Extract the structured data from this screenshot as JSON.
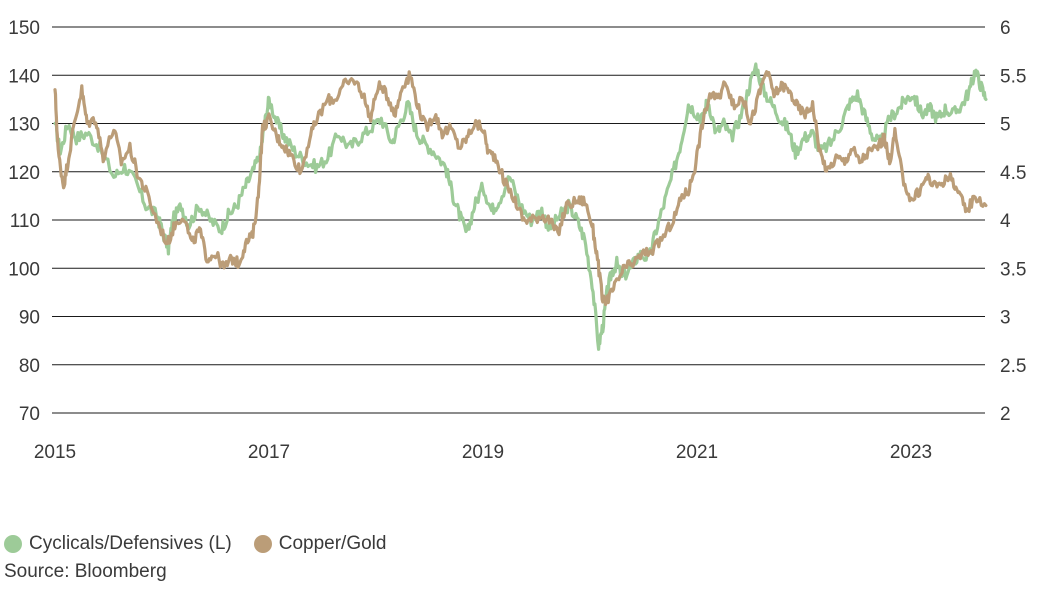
{
  "chart_data": {
    "type": "line",
    "title": "",
    "grid": "horizontal",
    "x_ticks": [
      "2015",
      "2017",
      "2019",
      "2021",
      "2023"
    ],
    "xlim": [
      2015.0,
      2023.7
    ],
    "y_left": {
      "lim": [
        70,
        150
      ],
      "ticks": [
        "70",
        "80",
        "90",
        "100",
        "110",
        "120",
        "130",
        "140",
        "150"
      ]
    },
    "y_right": {
      "lim": [
        2,
        6
      ],
      "ticks": [
        "2",
        "2.5",
        "3",
        "3.5",
        "4",
        "4.5",
        "5",
        "5.5",
        "6"
      ]
    },
    "series": [
      {
        "name": "Cyclicals/Defensives (L)",
        "axis": "left",
        "color": "#9dcb98",
        "x": [
          2015.0,
          2015.05,
          2015.12,
          2015.2,
          2015.3,
          2015.42,
          2015.55,
          2015.65,
          2015.75,
          2015.85,
          2015.95,
          2016.0,
          2016.06,
          2016.1,
          2016.18,
          2016.25,
          2016.35,
          2016.45,
          2016.55,
          2016.62,
          2016.7,
          2016.78,
          2016.85,
          2016.92,
          2016.96,
          2017.0,
          2017.08,
          2017.15,
          2017.25,
          2017.35,
          2017.45,
          2017.55,
          2017.65,
          2017.75,
          2017.85,
          2017.95,
          2018.05,
          2018.15,
          2018.22,
          2018.3,
          2018.38,
          2018.45,
          2018.55,
          2018.65,
          2018.72,
          2018.78,
          2018.85,
          2018.92,
          2019.0,
          2019.08,
          2019.15,
          2019.25,
          2019.35,
          2019.45,
          2019.55,
          2019.62,
          2019.72,
          2019.8,
          2019.88,
          2019.95,
          2020.02,
          2020.08,
          2020.12,
          2020.16,
          2020.2,
          2020.25,
          2020.3,
          2020.38,
          2020.46,
          2020.55,
          2020.62,
          2020.7,
          2020.78,
          2020.85,
          2020.92,
          2021.0,
          2021.05,
          2021.1,
          2021.18,
          2021.25,
          2021.32,
          2021.4,
          2021.48,
          2021.55,
          2021.62,
          2021.7,
          2021.78,
          2021.85,
          2021.92,
          2022.0,
          2022.08,
          2022.15,
          2022.25,
          2022.35,
          2022.42,
          2022.5,
          2022.58,
          2022.65,
          2022.72,
          2022.8,
          2022.88,
          2022.95,
          2023.02,
          2023.1,
          2023.18,
          2023.25,
          2023.32,
          2023.4,
          2023.48,
          2023.55,
          2023.6,
          2023.65,
          2023.7
        ],
        "values": [
          130,
          124,
          130,
          127,
          128,
          125,
          119,
          121,
          118,
          113,
          111,
          108,
          104,
          110,
          113,
          109,
          113,
          110,
          108,
          111,
          113,
          117,
          120,
          124,
          130,
          135,
          130,
          127,
          124,
          122,
          121,
          123,
          128,
          125,
          127,
          129,
          131,
          126,
          130,
          134,
          128,
          126,
          124,
          121,
          115,
          111,
          107,
          113,
          117,
          112,
          114,
          119,
          113,
          110,
          112,
          108,
          111,
          113,
          110,
          106,
          97,
          84,
          88,
          95,
          99,
          101,
          98,
          100,
          103,
          102,
          108,
          114,
          120,
          126,
          134,
          132,
          131,
          135,
          128,
          130,
          127,
          131,
          137,
          142,
          137,
          134,
          131,
          129,
          124,
          127,
          128,
          124,
          126,
          130,
          134,
          136,
          131,
          127,
          126,
          131,
          133,
          135,
          136,
          132,
          133,
          131,
          133,
          132,
          134,
          137,
          141,
          138,
          135
        ]
      },
      {
        "name": "Copper/Gold",
        "axis": "right",
        "color": "#bb9d78",
        "x": [
          2015.0,
          2015.03,
          2015.08,
          2015.12,
          2015.18,
          2015.25,
          2015.3,
          2015.38,
          2015.45,
          2015.55,
          2015.62,
          2015.7,
          2015.78,
          2015.85,
          2015.95,
          2016.05,
          2016.12,
          2016.2,
          2016.28,
          2016.35,
          2016.42,
          2016.5,
          2016.58,
          2016.65,
          2016.72,
          2016.78,
          2016.85,
          2016.9,
          2016.94,
          2017.0,
          2017.08,
          2017.15,
          2017.22,
          2017.3,
          2017.38,
          2017.45,
          2017.55,
          2017.62,
          2017.7,
          2017.8,
          2017.88,
          2017.95,
          2018.02,
          2018.1,
          2018.18,
          2018.25,
          2018.32,
          2018.4,
          2018.47,
          2018.55,
          2018.62,
          2018.7,
          2018.78,
          2018.85,
          2018.92,
          2019.0,
          2019.05,
          2019.12,
          2019.2,
          2019.3,
          2019.38,
          2019.45,
          2019.55,
          2019.62,
          2019.7,
          2019.78,
          2019.88,
          2019.95,
          2020.02,
          2020.07,
          2020.12,
          2020.18,
          2020.25,
          2020.32,
          2020.4,
          2020.5,
          2020.6,
          2020.7,
          2020.78,
          2020.86,
          2020.92,
          2020.98,
          2021.05,
          2021.12,
          2021.2,
          2021.27,
          2021.35,
          2021.42,
          2021.5,
          2021.58,
          2021.65,
          2021.72,
          2021.8,
          2021.88,
          2021.95,
          2022.02,
          2022.08,
          2022.15,
          2022.22,
          2022.3,
          2022.38,
          2022.45,
          2022.52,
          2022.6,
          2022.68,
          2022.75,
          2022.8,
          2022.85,
          2022.92,
          2023.0,
          2023.08,
          2023.15,
          2023.22,
          2023.3,
          2023.38,
          2023.45,
          2023.52,
          2023.6,
          2023.7
        ],
        "values": [
          5.35,
          4.7,
          4.35,
          4.6,
          5.0,
          5.35,
          5.0,
          5.05,
          4.65,
          4.95,
          4.6,
          4.75,
          4.45,
          4.3,
          4.0,
          3.75,
          3.95,
          4.05,
          3.75,
          3.9,
          3.6,
          3.65,
          3.5,
          3.6,
          3.55,
          3.75,
          3.85,
          4.25,
          4.95,
          5.05,
          4.85,
          4.75,
          4.65,
          4.5,
          4.85,
          5.05,
          5.25,
          5.25,
          5.4,
          5.45,
          5.3,
          5.05,
          5.4,
          5.3,
          5.1,
          5.4,
          5.5,
          5.15,
          4.95,
          5.1,
          4.9,
          4.95,
          4.75,
          4.85,
          5.0,
          4.95,
          4.7,
          4.65,
          4.4,
          4.2,
          4.0,
          4.0,
          4.05,
          4.0,
          3.85,
          4.15,
          4.2,
          4.2,
          3.95,
          3.6,
          3.15,
          3.2,
          3.35,
          3.5,
          3.55,
          3.65,
          3.7,
          3.85,
          4.0,
          4.25,
          4.3,
          4.55,
          5.0,
          5.3,
          5.25,
          5.45,
          5.15,
          5.3,
          5.0,
          5.3,
          5.55,
          5.3,
          5.4,
          5.3,
          5.15,
          5.1,
          5.2,
          4.7,
          4.5,
          4.65,
          4.6,
          4.75,
          4.6,
          4.7,
          4.75,
          4.85,
          4.6,
          4.9,
          4.45,
          4.2,
          4.3,
          4.45,
          4.35,
          4.4,
          4.45,
          4.25,
          4.1,
          4.25,
          4.15
        ]
      }
    ],
    "legend_position": "bottom-left"
  },
  "legend": {
    "items": [
      {
        "label": "Cyclicals/Defensives (L)",
        "color": "#9dcb98"
      },
      {
        "label": "Copper/Gold",
        "color": "#bb9d78"
      }
    ]
  },
  "source": "Source: Bloomberg"
}
